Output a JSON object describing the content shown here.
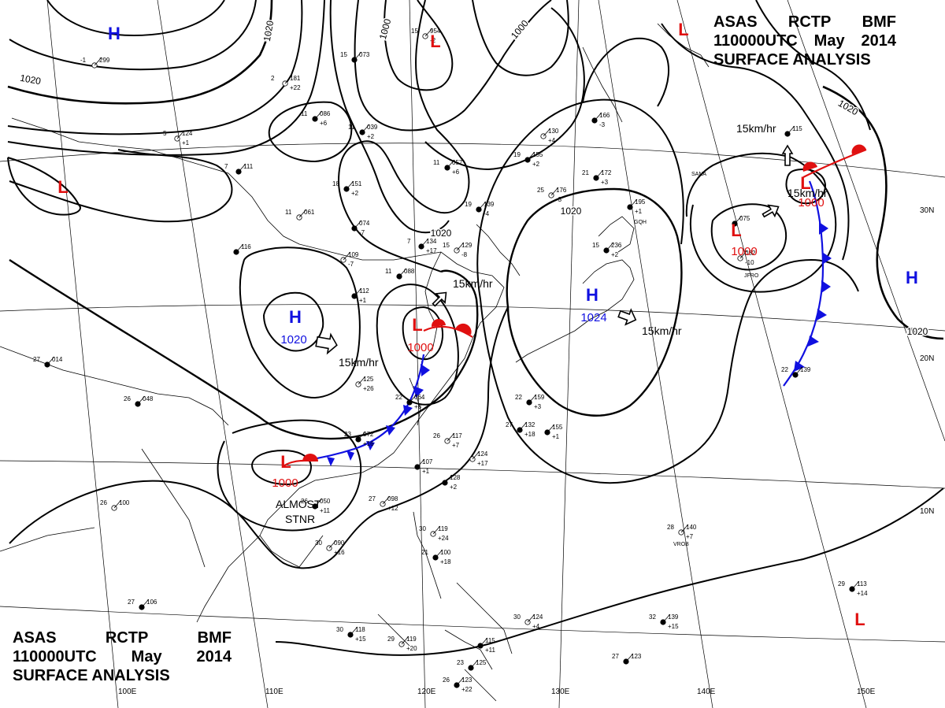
{
  "header": {
    "agency": [
      "ASAS",
      "RCTP",
      "BMF"
    ],
    "time": [
      "110000UTC",
      "May",
      "2014"
    ],
    "product": "SURFACE ANALYSIS"
  },
  "colors": {
    "high": "#1010e0",
    "low": "#e01010",
    "cold_front": "#1010e0",
    "warm_front": "#e01010",
    "isobar": "#000000",
    "grid": "#000000"
  },
  "pressure_centers": [
    {
      "type": "H",
      "value": ""
    },
    {
      "type": "H",
      "value": "1020"
    },
    {
      "type": "H",
      "value": "1024"
    },
    {
      "type": "H",
      "value": ""
    },
    {
      "type": "L",
      "value": ""
    },
    {
      "type": "L",
      "value": "1000"
    },
    {
      "type": "L",
      "value": "1000"
    },
    {
      "type": "L",
      "value": ""
    },
    {
      "type": "L",
      "value": "1000"
    },
    {
      "type": "L",
      "value": "1000"
    },
    {
      "type": "L",
      "value": ""
    },
    {
      "type": "L",
      "value": ""
    }
  ],
  "isobar_labels": [
    "1020",
    "1000",
    "1000",
    "1020",
    "1020",
    "1020",
    "1020",
    "1020"
  ],
  "motion_labels": [
    "15km/hr",
    "15km/hr",
    "15km/hr",
    "15km/hr",
    "15km/hr"
  ],
  "annotations": [
    "ALMOST",
    "STNR"
  ],
  "longitude_labels": [
    "100E",
    "110E",
    "120E",
    "130E",
    "140E",
    "150E"
  ],
  "latitude_labels": [
    "30N",
    "20N",
    "10N"
  ],
  "station_plots": [
    {
      "top": "954",
      "bottom": "-2",
      "temp": "15"
    },
    {
      "top": "039",
      "bottom": "+2",
      "temp": "11"
    },
    {
      "top": "057",
      "bottom": "+6",
      "temp": "11"
    },
    {
      "top": "061",
      "bottom": "",
      "temp": "11"
    },
    {
      "top": "074",
      "bottom": "-7",
      "temp": ""
    },
    {
      "top": "134",
      "bottom": "+17",
      "temp": "7"
    },
    {
      "top": "129",
      "bottom": "-8",
      "temp": "15"
    },
    {
      "top": "139",
      "bottom": "-4",
      "temp": "19"
    },
    {
      "top": "155",
      "bottom": "+2",
      "temp": "19"
    },
    {
      "top": "176",
      "bottom": "-3",
      "temp": "25"
    },
    {
      "top": "195",
      "bottom": "+1",
      "temp": ""
    },
    {
      "top": "236",
      "bottom": "+2",
      "temp": "15"
    },
    {
      "top": "130",
      "bottom": "+4",
      "temp": ""
    },
    {
      "top": "088",
      "bottom": "",
      "temp": "11"
    },
    {
      "top": "112",
      "bottom": "+1",
      "temp": ""
    },
    {
      "top": "109",
      "bottom": "-7",
      "temp": ""
    },
    {
      "top": "064",
      "bottom": "+8",
      "temp": "22"
    },
    {
      "top": "072",
      "bottom": "+16",
      "temp": "23"
    },
    {
      "top": "117",
      "bottom": "+7",
      "temp": "26"
    },
    {
      "top": "107",
      "bottom": "+1",
      "temp": ""
    },
    {
      "top": "128",
      "bottom": "+2",
      "temp": ""
    },
    {
      "top": "098",
      "bottom": "+12",
      "temp": "27"
    },
    {
      "top": "132",
      "bottom": "+18",
      "temp": "27"
    },
    {
      "top": "155",
      "bottom": "+1",
      "temp": ""
    },
    {
      "top": "124",
      "bottom": "+17",
      "temp": ""
    },
    {
      "top": "159",
      "bottom": "+3",
      "temp": "22"
    },
    {
      "top": "050",
      "bottom": "+11",
      "temp": "26"
    },
    {
      "top": "090",
      "bottom": "+16",
      "temp": "30"
    },
    {
      "top": "048",
      "bottom": "",
      "temp": "26"
    },
    {
      "top": "014",
      "bottom": "",
      "temp": "27"
    },
    {
      "top": "100",
      "bottom": "",
      "temp": "26"
    },
    {
      "top": "106",
      "bottom": "",
      "temp": "27"
    },
    {
      "top": "118",
      "bottom": "+15",
      "temp": "30"
    },
    {
      "top": "119",
      "bottom": "+20",
      "temp": "29"
    },
    {
      "top": "123",
      "bottom": "+22",
      "temp": "26"
    },
    {
      "top": "115",
      "bottom": "+11",
      "temp": ""
    },
    {
      "top": "124",
      "bottom": "+4",
      "temp": "30"
    },
    {
      "top": "123",
      "bottom": "",
      "temp": "27"
    },
    {
      "top": "139",
      "bottom": "+15",
      "temp": "32"
    },
    {
      "top": "140",
      "bottom": "+7",
      "temp": "28"
    },
    {
      "top": "113",
      "bottom": "+14",
      "temp": "29"
    },
    {
      "top": "139",
      "bottom": "",
      "temp": "22"
    },
    {
      "top": "082",
      "bottom": "-10",
      "temp": ""
    },
    {
      "top": "075",
      "bottom": "",
      "temp": ""
    },
    {
      "top": "115",
      "bottom": "",
      "temp": ""
    },
    {
      "top": "299",
      "bottom": "",
      "temp": "-1"
    },
    {
      "top": "111",
      "bottom": "",
      "temp": "7"
    },
    {
      "top": "116",
      "bottom": "",
      "temp": ""
    },
    {
      "top": "124",
      "bottom": "+1",
      "temp": "5"
    },
    {
      "top": "086",
      "bottom": "+6",
      "temp": "11"
    },
    {
      "top": "073",
      "bottom": "",
      "temp": "15"
    },
    {
      "top": "181",
      "bottom": "+22",
      "temp": "2"
    },
    {
      "top": "172",
      "bottom": "+3",
      "temp": "21"
    },
    {
      "top": "151",
      "bottom": "+2",
      "temp": "18"
    },
    {
      "top": "125",
      "bottom": "+26",
      "temp": ""
    },
    {
      "top": "125",
      "bottom": "",
      "temp": "23"
    },
    {
      "top": "100",
      "bottom": "+18",
      "temp": "21"
    },
    {
      "top": "119",
      "bottom": "+24",
      "temp": "30"
    },
    {
      "top": "166",
      "bottom": "-3",
      "temp": ""
    }
  ],
  "station_ids": [
    "SANA",
    "JFRO",
    "VROB",
    "GQH"
  ]
}
